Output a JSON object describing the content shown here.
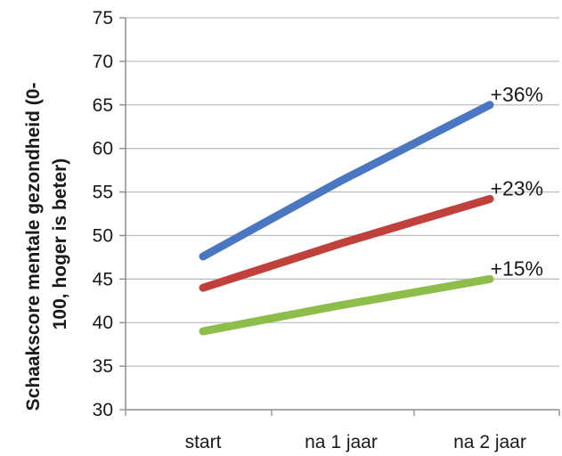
{
  "chart_data": {
    "type": "line",
    "title": "",
    "xlabel": "",
    "ylabel_lines": [
      "Schaakscore mentale gezondheid      (0-",
      "100, hoger is beter)"
    ],
    "categories": [
      "start",
      "na 1 jaar",
      "na 2 jaar"
    ],
    "ylim": [
      30,
      75
    ],
    "yticks": [
      30,
      35,
      40,
      45,
      50,
      55,
      60,
      65,
      70,
      75
    ],
    "grid": "horizontal",
    "legend": "none",
    "series": [
      {
        "color": "#4a76c2",
        "values": [
          47.6,
          56.3,
          65.0
        ],
        "annotation": "+36%"
      },
      {
        "color": "#c0403b",
        "values": [
          44.0,
          49.1,
          54.2
        ],
        "annotation": "+23%"
      },
      {
        "color": "#8fbd4c",
        "values": [
          39.0,
          42.0,
          45.0
        ],
        "annotation": "+15%"
      }
    ]
  }
}
